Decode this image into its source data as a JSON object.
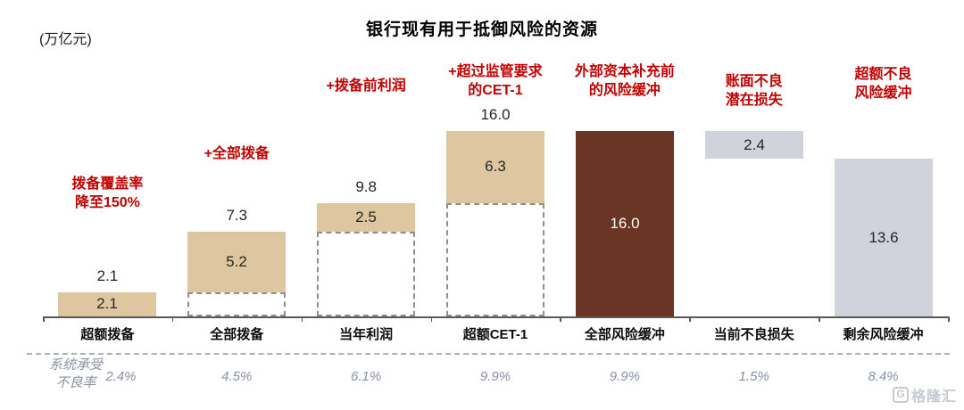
{
  "header": {
    "unit_label": "(万亿元)",
    "title": "银行现有用于抵御风险的资源"
  },
  "colors": {
    "tan": "#dec6a0",
    "brown": "#6b3525",
    "grey": "#d0d3db",
    "red": "#c00000",
    "value_text": "#262626",
    "white_text": "#ffffff",
    "muted_blue": "#8a91a5",
    "axis": "#595959",
    "dash_outline": "#8f8f8f",
    "watermark": "#c6cad3"
  },
  "watermark": {
    "logo": "G",
    "text": "格隆汇"
  },
  "chart_data": {
    "type": "bar",
    "subtype": "waterfall",
    "title": "银行现有用于抵御风险的资源",
    "unit": "万亿元",
    "ylim": [
      0,
      16
    ],
    "grid": false,
    "legend": "none",
    "categories": [
      "超额拨备",
      "全部拨备",
      "当年利润",
      "超额CET-1",
      "全部风险缓冲",
      "当前不良损失",
      "剩余风险缓冲"
    ],
    "columns": [
      {
        "category": "超额拨备",
        "annotation_lines": [
          "拨备覆盖率",
          "降至150%"
        ],
        "base": 0,
        "segment": [
          0,
          2.1
        ],
        "segment_label": "2.1",
        "total_label": "2.1",
        "color_key": "tan",
        "npl": "2.4%"
      },
      {
        "category": "全部拨备",
        "annotation_lines": [
          "+全部拨备"
        ],
        "base": 2.1,
        "segment": [
          2.1,
          7.3
        ],
        "segment_label": "5.2",
        "total_label": "7.3",
        "color_key": "tan",
        "npl": "4.5%"
      },
      {
        "category": "当年利润",
        "annotation_lines": [
          "+拨备前利润"
        ],
        "base": 7.3,
        "segment": [
          7.3,
          9.8
        ],
        "segment_label": "2.5",
        "total_label": "9.8",
        "color_key": "tan",
        "npl": "6.1%"
      },
      {
        "category": "超额CET-1",
        "annotation_lines": [
          "+超过监管要求",
          "的CET-1"
        ],
        "base": 9.8,
        "segment": [
          9.8,
          16.0
        ],
        "segment_label": "6.3",
        "total_label": "16.0",
        "color_key": "tan",
        "npl": "9.9%"
      },
      {
        "category": "全部风险缓冲",
        "annotation_lines": [
          "外部资本补充前",
          "的风险缓冲"
        ],
        "base": 0,
        "segment": [
          0,
          16.0
        ],
        "segment_label": "16.0",
        "total_label": "",
        "color_key": "brown",
        "npl": "9.9%"
      },
      {
        "category": "当前不良损失",
        "annotation_lines": [
          "账面不良",
          "潜在损失"
        ],
        "base": 0,
        "segment": [
          13.6,
          16.0
        ],
        "segment_label": "2.4",
        "total_label": "",
        "color_key": "grey",
        "npl": "1.5%"
      },
      {
        "category": "剩余风险缓冲",
        "annotation_lines": [
          "超额不良",
          "风险缓冲"
        ],
        "base": 0,
        "segment": [
          0,
          13.6
        ],
        "segment_label": "13.6",
        "total_label": "",
        "color_key": "grey",
        "npl": "8.4%"
      }
    ],
    "npl_row": {
      "label_lines": [
        "系统承受",
        "不良率"
      ],
      "values": [
        "2.4%",
        "4.5%",
        "6.1%",
        "9.9%",
        "9.9%",
        "1.5%",
        "8.4%"
      ]
    }
  }
}
